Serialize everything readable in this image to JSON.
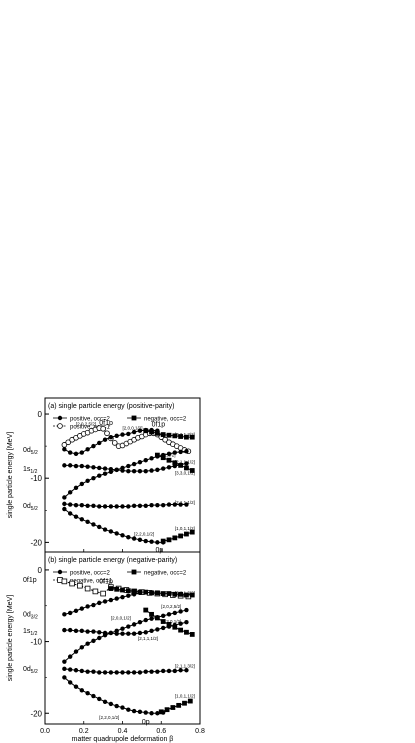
{
  "chart_data": [
    {
      "type": "line",
      "title": "(a)  single particle energy (positive-parity)",
      "ylabel": "single particle energy [MeV]",
      "xlabel": "",
      "xlim": [
        0,
        0.8
      ],
      "ylim": [
        -21.5,
        2.5
      ],
      "yticks": [
        0,
        -10,
        -20
      ],
      "ytick_labels": [
        "0",
        "-10",
        "-20"
      ],
      "legend": {
        "placement": "top-left",
        "entries": [
          {
            "label": "positive, occ=2",
            "marker": "filled-circle",
            "line": "solid"
          },
          {
            "label": "negative, occ=2",
            "marker": "filled-square",
            "line": "solid"
          },
          {
            "label": "positive, occ=1",
            "marker": "open-circle",
            "line": "dashed"
          }
        ]
      },
      "series": [
        {
          "marker": "open-circle",
          "x": [
            0.1,
            0.12,
            0.14,
            0.16,
            0.18,
            0.2,
            0.22,
            0.24,
            0.26,
            0.28,
            0.3,
            0.32,
            0.34,
            0.36,
            0.38,
            0.4,
            0.42,
            0.44,
            0.46,
            0.48,
            0.5,
            0.52,
            0.54,
            0.56,
            0.58,
            0.6,
            0.62,
            0.64,
            0.66,
            0.68,
            0.7,
            0.72,
            0.74
          ],
          "y": [
            -4.8,
            -4.4,
            -4.0,
            -3.7,
            -3.4,
            -3.1,
            -2.9,
            -2.6,
            -2.4,
            -2.2,
            -2.3,
            -3.0,
            -3.8,
            -4.5,
            -5.0,
            -4.9,
            -4.6,
            -4.3,
            -4.0,
            -3.7,
            -3.5,
            -3.2,
            -3.0,
            -3.0,
            -3.2,
            -3.6,
            -4.0,
            -4.4,
            -4.7,
            -5.0,
            -5.3,
            -5.6,
            -5.8
          ]
        },
        {
          "marker": "filled-circle",
          "x": [
            0.1,
            0.13,
            0.16,
            0.19,
            0.22,
            0.25,
            0.28,
            0.31,
            0.34,
            0.37,
            0.4,
            0.43,
            0.46,
            0.49,
            0.52,
            0.55,
            0.58
          ],
          "y": [
            -5.5,
            -6.0,
            -6.2,
            -6.0,
            -5.5,
            -5.0,
            -4.5,
            -4.0,
            -3.6,
            -3.4,
            -3.2,
            -3.1,
            -2.8,
            -2.6,
            -2.5,
            -2.5,
            -2.6
          ]
        },
        {
          "marker": "filled-circle",
          "x": [
            0.1,
            0.13,
            0.16,
            0.19,
            0.22,
            0.25,
            0.28,
            0.31,
            0.34,
            0.37,
            0.4,
            0.43,
            0.46,
            0.49,
            0.52,
            0.55,
            0.58,
            0.61,
            0.64,
            0.67,
            0.7,
            0.73
          ],
          "y": [
            -8.0,
            -8.0,
            -8.1,
            -8.1,
            -8.2,
            -8.3,
            -8.4,
            -8.5,
            -8.6,
            -8.7,
            -8.8,
            -8.9,
            -8.9,
            -8.9,
            -8.9,
            -8.8,
            -8.7,
            -8.5,
            -8.3,
            -8.1,
            -7.9,
            -7.7
          ]
        },
        {
          "marker": "filled-circle",
          "x": [
            0.1,
            0.13,
            0.16,
            0.19,
            0.22,
            0.25,
            0.28,
            0.31,
            0.34,
            0.37,
            0.4,
            0.43,
            0.46,
            0.49,
            0.52,
            0.55,
            0.58,
            0.61,
            0.64,
            0.67,
            0.7,
            0.73
          ],
          "y": [
            -13.0,
            -12.2,
            -11.5,
            -10.9,
            -10.4,
            -10.0,
            -9.6,
            -9.3,
            -9.0,
            -8.7,
            -8.4,
            -8.1,
            -7.8,
            -7.5,
            -7.2,
            -6.9,
            -6.6,
            -6.4,
            -6.2,
            -6.0,
            -5.9,
            -5.8
          ]
        },
        {
          "marker": "filled-circle",
          "x": [
            0.1,
            0.13,
            0.16,
            0.19,
            0.22,
            0.25,
            0.28,
            0.31,
            0.34,
            0.37,
            0.4,
            0.43,
            0.46,
            0.49,
            0.52,
            0.55,
            0.58,
            0.61,
            0.64,
            0.67,
            0.7,
            0.73
          ],
          "y": [
            -14.0,
            -14.1,
            -14.2,
            -14.2,
            -14.3,
            -14.3,
            -14.4,
            -14.4,
            -14.4,
            -14.4,
            -14.4,
            -14.4,
            -14.3,
            -14.3,
            -14.3,
            -14.2,
            -14.2,
            -14.2,
            -14.1,
            -14.1,
            -14.1,
            -14.1
          ]
        },
        {
          "marker": "filled-circle",
          "x": [
            0.1,
            0.13,
            0.16,
            0.19,
            0.22,
            0.25,
            0.28,
            0.31,
            0.34,
            0.37,
            0.4,
            0.43,
            0.46,
            0.49,
            0.52,
            0.55,
            0.58,
            0.61
          ],
          "y": [
            -14.8,
            -15.5,
            -16.0,
            -16.4,
            -16.8,
            -17.2,
            -17.6,
            -18.0,
            -18.3,
            -18.6,
            -18.9,
            -19.2,
            -19.4,
            -19.6,
            -19.8,
            -19.9,
            -20.0,
            -20.0
          ]
        },
        {
          "marker": "filled-square",
          "x": [
            0.52,
            0.55,
            0.58,
            0.61,
            0.64,
            0.67,
            0.7,
            0.73,
            0.76
          ],
          "y": [
            -2.6,
            -2.8,
            -3.0,
            -3.2,
            -3.3,
            -3.4,
            -3.5,
            -3.6,
            -3.6
          ]
        },
        {
          "marker": "filled-square",
          "x": [
            0.58,
            0.61,
            0.64,
            0.67,
            0.7,
            0.73,
            0.76
          ],
          "y": [
            -6.4,
            -6.8,
            -7.2,
            -7.6,
            -8.0,
            -8.4,
            -8.8
          ]
        },
        {
          "marker": "filled-square",
          "x": [
            0.61,
            0.64,
            0.67,
            0.7,
            0.73,
            0.76
          ],
          "y": [
            -19.8,
            -19.6,
            -19.3,
            -19.0,
            -18.7,
            -18.4
          ]
        }
      ],
      "annotations": [
        {
          "text": "0d5/2",
          "x": 0.0,
          "y": -5.6
        },
        {
          "text": "1s1/2",
          "x": 0.0,
          "y": -8.6
        },
        {
          "text": "0d5/2",
          "x": 0.0,
          "y": -14.3
        },
        {
          "text": "[2,0,2,5/2]",
          "x": 0.16,
          "y": -1.8
        },
        {
          "text": "0f1p",
          "x": 0.28,
          "y": -1.4
        },
        {
          "text": "[2,0,0,1/2]",
          "x": 0.4,
          "y": -2.4
        },
        {
          "text": "0f1p",
          "x": 0.55,
          "y": -1.6
        },
        {
          "text": "[3,2,1,3/2]",
          "x": 0.67,
          "y": -3.4
        },
        {
          "text": "[2,0,2,3/2]",
          "x": 0.57,
          "y": -6.6
        },
        {
          "text": "[2,1,1,1/2]",
          "x": 0.67,
          "y": -7.7
        },
        {
          "text": "[3,3,0,1/2]",
          "x": 0.67,
          "y": -9.4
        },
        {
          "text": "[2,1,1,1/2]",
          "x": 0.67,
          "y": -14.0
        },
        {
          "text": "[1,0,1,1/2]",
          "x": 0.67,
          "y": -18.1
        },
        {
          "text": "[2,2,0,1/2]",
          "x": 0.46,
          "y": -18.9
        },
        {
          "text": "0p",
          "x": 0.57,
          "y": -21.2
        }
      ]
    },
    {
      "type": "line",
      "title": "(b)  single particle energy (negative-parity)",
      "ylabel": "single particle energy [MeV]",
      "xlabel": "matter quadrupole deformation β",
      "xlim": [
        0,
        0.8
      ],
      "ylim": [
        -21.5,
        2.5
      ],
      "xticks": [
        0,
        0.2,
        0.4,
        0.6,
        0.8
      ],
      "xtick_labels": [
        "0.0",
        "0.2",
        "0.4",
        "0.6",
        "0.8"
      ],
      "yticks": [
        0,
        -10,
        -20
      ],
      "ytick_labels": [
        "0",
        "-10",
        "-20"
      ],
      "legend": {
        "placement": "top",
        "entries": [
          {
            "label": "positive, occ=2",
            "marker": "filled-circle",
            "line": "solid"
          },
          {
            "label": "negative, occ=2",
            "marker": "filled-square",
            "line": "solid"
          },
          {
            "label": "negative, occ=1",
            "marker": "open-square",
            "line": "dashed"
          }
        ]
      },
      "series": [
        {
          "marker": "open-square",
          "x": [
            0.1,
            0.14,
            0.18,
            0.22,
            0.26,
            0.3,
            0.34,
            0.38,
            0.42,
            0.46,
            0.5,
            0.54,
            0.58,
            0.62,
            0.66,
            0.7,
            0.74
          ],
          "y": [
            -1.6,
            -1.9,
            -2.2,
            -2.6,
            -3.0,
            -3.3,
            -2.4,
            -2.6,
            -2.8,
            -3.0,
            -3.1,
            -3.2,
            -3.3,
            -3.4,
            -3.5,
            -3.6,
            -3.7
          ]
        },
        {
          "marker": "filled-circle",
          "x": [
            0.1,
            0.13,
            0.16,
            0.19,
            0.22,
            0.25,
            0.28,
            0.31,
            0.34,
            0.37,
            0.4,
            0.43,
            0.46,
            0.49
          ],
          "y": [
            -6.2,
            -6.0,
            -5.7,
            -5.4,
            -5.1,
            -4.9,
            -4.6,
            -4.4,
            -4.2,
            -4.0,
            -3.8,
            -3.6,
            -3.4,
            -3.2
          ]
        },
        {
          "marker": "filled-circle",
          "x": [
            0.1,
            0.13,
            0.16,
            0.19,
            0.22,
            0.25,
            0.28,
            0.31,
            0.34,
            0.37,
            0.4,
            0.43,
            0.46,
            0.49,
            0.52,
            0.55,
            0.58,
            0.61,
            0.64,
            0.67,
            0.7,
            0.73
          ],
          "y": [
            -8.4,
            -8.4,
            -8.5,
            -8.5,
            -8.6,
            -8.6,
            -8.7,
            -8.8,
            -8.8,
            -8.9,
            -8.9,
            -8.9,
            -8.9,
            -8.8,
            -8.7,
            -8.5,
            -8.3,
            -8.1,
            -7.9,
            -7.7,
            -7.5,
            -7.3
          ]
        },
        {
          "marker": "filled-circle",
          "x": [
            0.1,
            0.13,
            0.16,
            0.19,
            0.22,
            0.25,
            0.28,
            0.31,
            0.34,
            0.37,
            0.4,
            0.43,
            0.46,
            0.49,
            0.52,
            0.55,
            0.58,
            0.61,
            0.64,
            0.67,
            0.7,
            0.73
          ],
          "y": [
            -12.8,
            -12.1,
            -11.4,
            -10.8,
            -10.3,
            -9.9,
            -9.5,
            -9.1,
            -8.8,
            -8.5,
            -8.2,
            -7.9,
            -7.6,
            -7.3,
            -7.0,
            -6.8,
            -6.6,
            -6.4,
            -6.2,
            -6.0,
            -5.8,
            -5.6
          ]
        },
        {
          "marker": "filled-circle",
          "x": [
            0.1,
            0.13,
            0.16,
            0.19,
            0.22,
            0.25,
            0.28,
            0.31,
            0.34,
            0.37,
            0.4,
            0.43,
            0.46,
            0.49,
            0.52,
            0.55,
            0.58,
            0.61,
            0.64,
            0.67,
            0.7,
            0.73
          ],
          "y": [
            -13.8,
            -13.9,
            -14.0,
            -14.1,
            -14.2,
            -14.2,
            -14.3,
            -14.3,
            -14.3,
            -14.3,
            -14.3,
            -14.3,
            -14.3,
            -14.3,
            -14.2,
            -14.2,
            -14.2,
            -14.1,
            -14.1,
            -14.1,
            -14.0,
            -14.0
          ]
        },
        {
          "marker": "filled-circle",
          "x": [
            0.1,
            0.13,
            0.16,
            0.19,
            0.22,
            0.25,
            0.28,
            0.31,
            0.34,
            0.37,
            0.4,
            0.43,
            0.46,
            0.49,
            0.52,
            0.55,
            0.58,
            0.61
          ],
          "y": [
            -15.0,
            -15.7,
            -16.3,
            -16.8,
            -17.2,
            -17.6,
            -18.0,
            -18.4,
            -18.7,
            -19.0,
            -19.2,
            -19.5,
            -19.7,
            -19.8,
            -19.9,
            -20.0,
            -20.0,
            -19.9
          ]
        },
        {
          "marker": "filled-square",
          "x": [
            0.34,
            0.37,
            0.4,
            0.43,
            0.46,
            0.49,
            0.52,
            0.55,
            0.58,
            0.61,
            0.64,
            0.67,
            0.7,
            0.73,
            0.76
          ],
          "y": [
            -2.6,
            -2.7,
            -2.8,
            -2.9,
            -3.0,
            -3.1,
            -3.1,
            -3.2,
            -3.2,
            -3.3,
            -3.3,
            -3.4,
            -3.4,
            -3.5,
            -3.5
          ]
        },
        {
          "marker": "filled-square",
          "x": [
            0.52,
            0.55,
            0.58,
            0.61,
            0.64,
            0.67,
            0.7,
            0.73,
            0.76
          ],
          "y": [
            -5.6,
            -6.2,
            -6.7,
            -7.2,
            -7.6,
            -8.0,
            -8.4,
            -8.7,
            -9.0
          ]
        },
        {
          "marker": "filled-square",
          "x": [
            0.6,
            0.63,
            0.66,
            0.69,
            0.72,
            0.75
          ],
          "y": [
            -19.8,
            -19.5,
            -19.2,
            -18.9,
            -18.6,
            -18.3
          ]
        }
      ],
      "annotations": [
        {
          "text": "0f1p",
          "x": 0.0,
          "y": -1.4
        },
        {
          "text": "0f1p",
          "x": 0.28,
          "y": -1.6
        },
        {
          "text": "0d3/2",
          "x": 0.0,
          "y": -6.2
        },
        {
          "text": "[2,0,0,1/2]",
          "x": 0.34,
          "y": -6.9
        },
        {
          "text": "1s1/2",
          "x": 0.0,
          "y": -8.5
        },
        {
          "text": "[2,1,1,1/2]",
          "x": 0.48,
          "y": -9.8
        },
        {
          "text": "0d5/2",
          "x": 0.0,
          "y": -13.8
        },
        {
          "text": "[3,2,1,3/2]",
          "x": 0.67,
          "y": -3.4
        },
        {
          "text": "[2,0,2,5/2]",
          "x": 0.6,
          "y": -5.3
        },
        {
          "text": "[3,3,0,1/2]",
          "x": 0.6,
          "y": -7.4
        },
        {
          "text": "[2,1,1,3/2]",
          "x": 0.67,
          "y": -13.6
        },
        {
          "text": "[1,0,1,1/2]",
          "x": 0.67,
          "y": -17.8
        },
        {
          "text": "[2,2,0,1/2]",
          "x": 0.28,
          "y": -20.8
        },
        {
          "text": "0p",
          "x": 0.5,
          "y": -21.2
        }
      ]
    }
  ]
}
